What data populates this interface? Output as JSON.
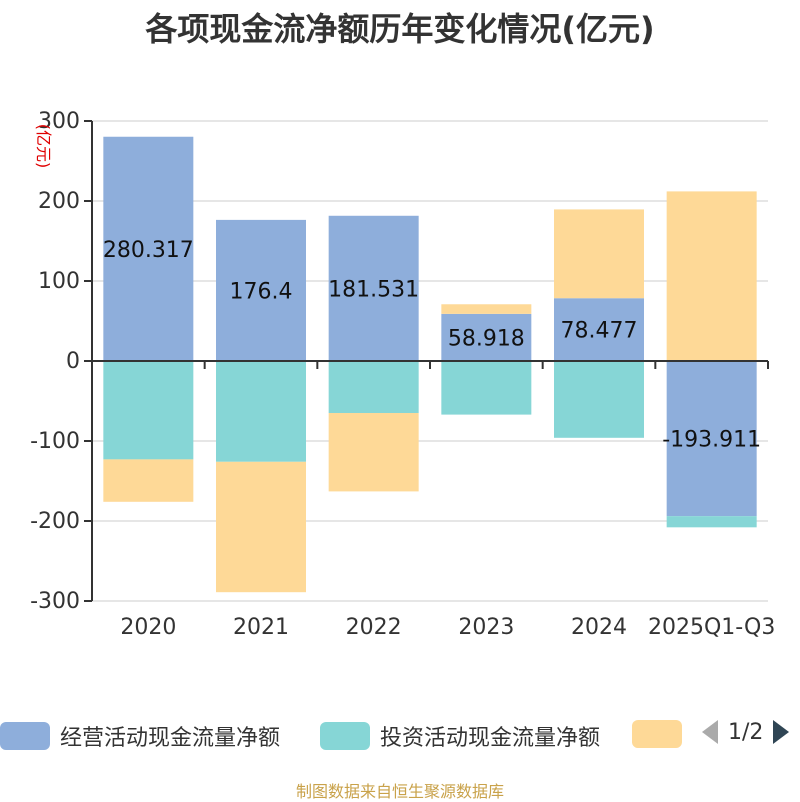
{
  "chart_data": {
    "type": "bar",
    "stacked": true,
    "title": "各项现金流净额历年变化情况(亿元)",
    "ylabel": "(亿元)",
    "ylim": [
      -300,
      300
    ],
    "yticks": [
      300,
      200,
      100,
      0,
      -100,
      -200,
      -300
    ],
    "categories": [
      "2020",
      "2021",
      "2022",
      "2023",
      "2024",
      "2025Q1-Q3"
    ],
    "series": [
      {
        "name": "经营活动现金流量净额",
        "color": "#8eaedb",
        "values": [
          280.317,
          176.4,
          181.531,
          58.918,
          78.477,
          -193.911
        ]
      },
      {
        "name": "投资活动现金流量净额",
        "color": "#86d6d6",
        "values": [
          -123,
          -126,
          -65,
          -67,
          -96,
          -14
        ]
      },
      {
        "name": "",
        "color": "#fed997",
        "values": [
          -53,
          -163,
          -98,
          12,
          111,
          212
        ]
      }
    ],
    "data_labels": [
      "280.317",
      "176.4",
      "181.531",
      "58.918",
      "78.477",
      "-193.911"
    ],
    "grid": true,
    "legend_position": "bottom"
  },
  "legend": {
    "pager": "1/2",
    "prev_icon": "triangle-left-icon",
    "next_icon": "triangle-right-icon"
  },
  "source": "制图数据来自恒生聚源数据库"
}
